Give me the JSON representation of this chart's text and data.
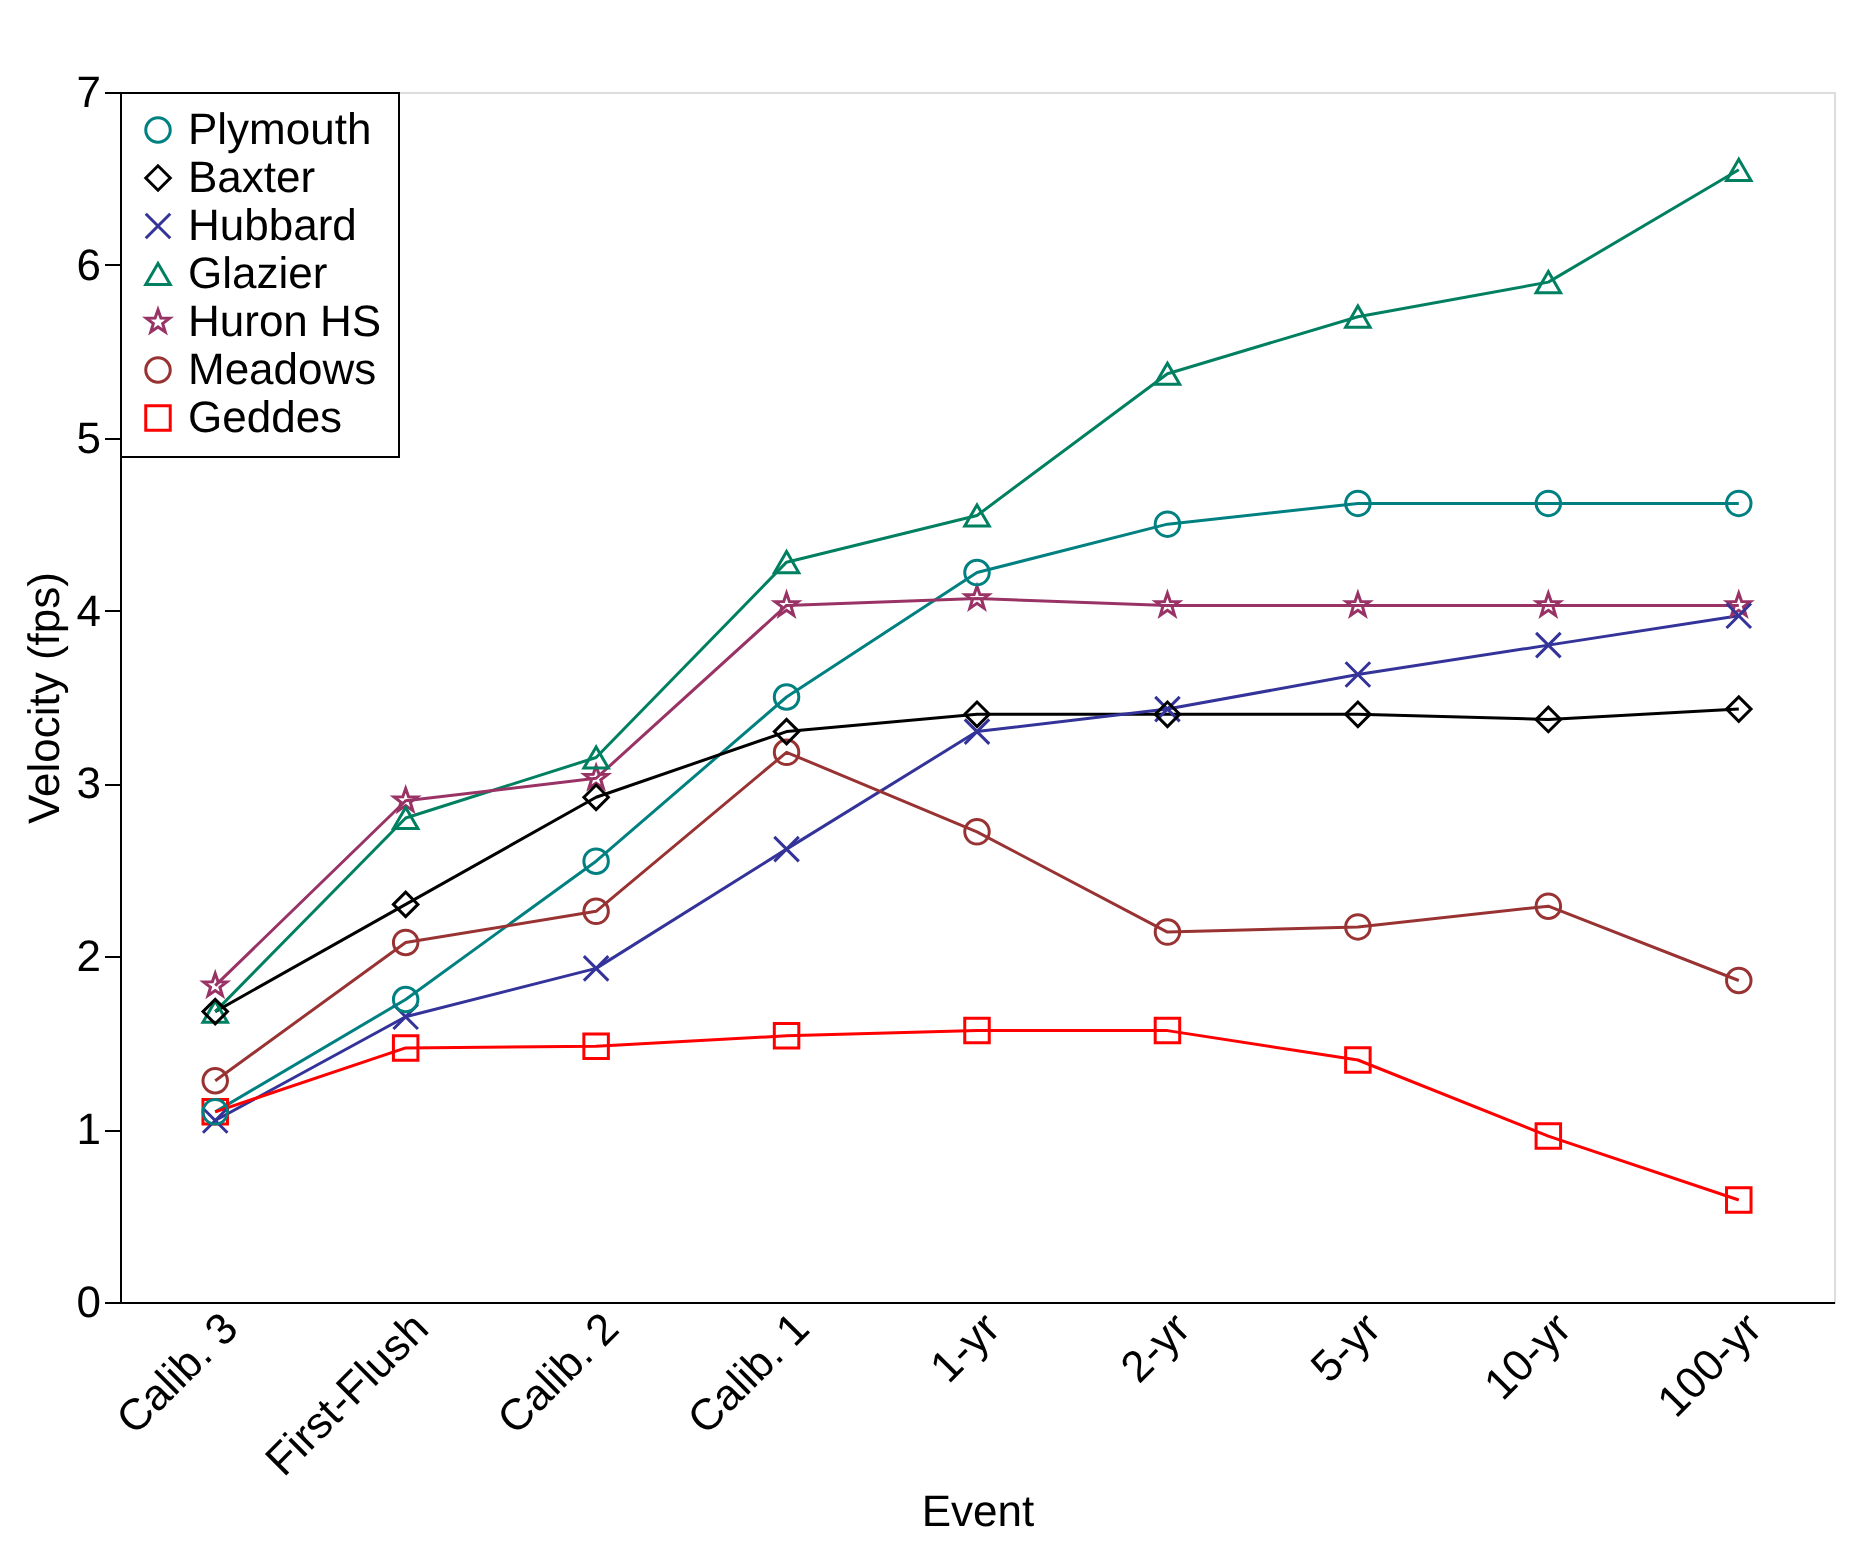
{
  "chart_data": {
    "type": "line",
    "xlabel": "Event",
    "ylabel": "Velocity (fps)",
    "categories": [
      "Calib. 3",
      "First-Flush",
      "Calib. 2",
      "Calib. 1",
      "1-yr",
      "2-yr",
      "5-yr",
      "10-yr",
      "100-yr"
    ],
    "ylim": [
      0,
      7
    ],
    "yticks": [
      0,
      1,
      2,
      3,
      4,
      5,
      6,
      7
    ],
    "grid": false,
    "legend": "top left",
    "series": [
      {
        "name": "Plymouth",
        "color": "#008080",
        "marker": "circle",
        "values": [
          1.1,
          1.75,
          2.55,
          3.5,
          4.22,
          4.5,
          4.62,
          4.62,
          4.62
        ]
      },
      {
        "name": "Baxter",
        "color": "#000000",
        "marker": "diamond",
        "values": [
          1.68,
          2.3,
          2.92,
          3.3,
          3.4,
          3.4,
          3.4,
          3.37,
          3.43
        ]
      },
      {
        "name": "Hubbard",
        "color": "#333399",
        "marker": "cross",
        "values": [
          1.05,
          1.65,
          1.93,
          2.62,
          3.3,
          3.43,
          3.63,
          3.8,
          3.97
        ]
      },
      {
        "name": "Glazier",
        "color": "#008060",
        "marker": "triangle",
        "values": [
          1.68,
          2.8,
          3.15,
          4.28,
          4.55,
          5.37,
          5.7,
          5.9,
          6.55
        ]
      },
      {
        "name": "Huron HS",
        "color": "#993366",
        "marker": "star",
        "values": [
          1.83,
          2.9,
          3.03,
          4.03,
          4.07,
          4.03,
          4.03,
          4.03,
          4.03
        ]
      },
      {
        "name": "Meadows",
        "color": "#993333",
        "marker": "circle",
        "values": [
          1.28,
          2.08,
          2.26,
          3.18,
          2.72,
          2.14,
          2.17,
          2.29,
          1.86
        ]
      },
      {
        "name": "Geddes",
        "color": "#ff0000",
        "marker": "square",
        "values": [
          1.1,
          1.47,
          1.48,
          1.54,
          1.57,
          1.57,
          1.4,
          0.96,
          0.59
        ]
      }
    ]
  }
}
